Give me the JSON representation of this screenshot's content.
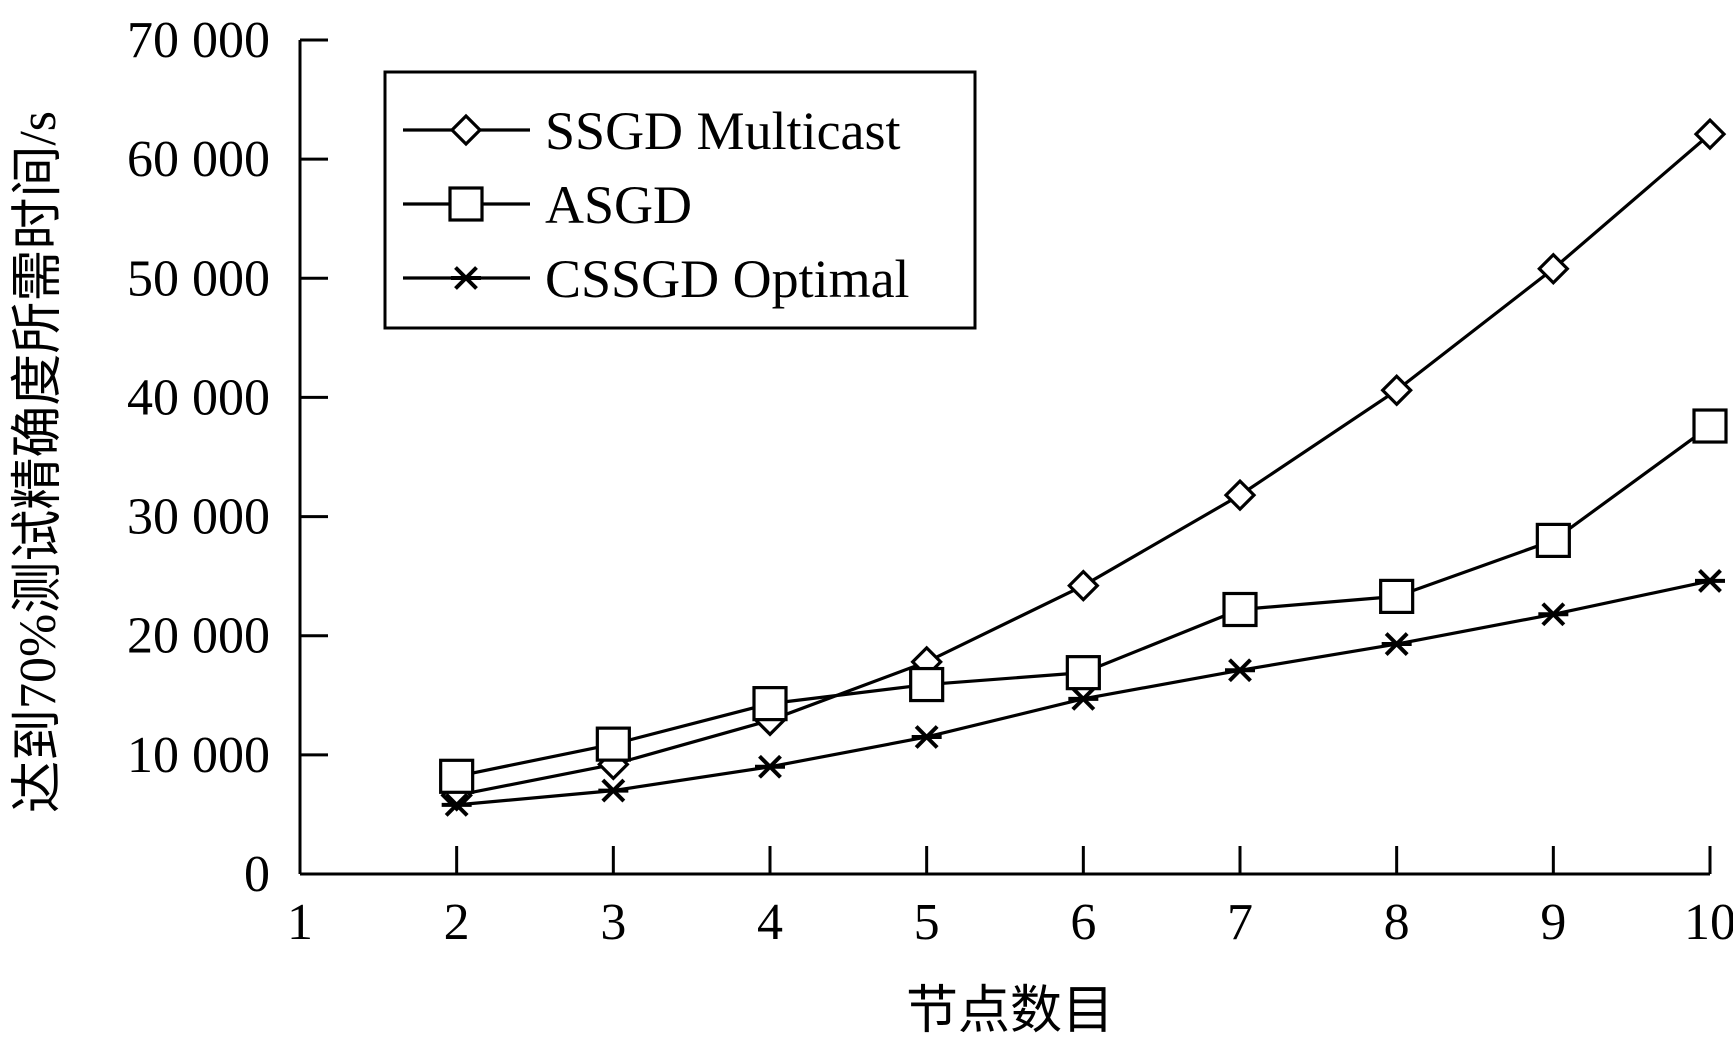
{
  "chart_data": {
    "type": "line",
    "title": "",
    "xlabel": "节点数目",
    "ylabel": "达到70%测试精确度所需时间/s",
    "xlim": [
      1,
      10
    ],
    "ylim": [
      0,
      70000
    ],
    "x_ticks": [
      "1",
      "2",
      "3",
      "4",
      "5",
      "6",
      "7",
      "8",
      "9",
      "10"
    ],
    "y_ticks": [
      "0",
      "10 000",
      "20 000",
      "30 000",
      "40 000",
      "50 000",
      "60 000",
      "70 000"
    ],
    "x": [
      2,
      3,
      4,
      5,
      6,
      7,
      8,
      9,
      10
    ],
    "legend_position": "top-left",
    "grid": false,
    "series": [
      {
        "name": "SSGD Multicast",
        "marker": "diamond",
        "values": [
          6600,
          9200,
          12900,
          17800,
          24200,
          31800,
          40600,
          50800,
          62100
        ]
      },
      {
        "name": "ASGD",
        "marker": "square",
        "values": [
          8200,
          10900,
          14300,
          15900,
          16900,
          22200,
          23300,
          28000,
          37600
        ]
      },
      {
        "name": "CSSGD Optimal",
        "marker": "star",
        "values": [
          5800,
          7000,
          9000,
          11500,
          14700,
          17100,
          19300,
          21800,
          24600
        ]
      }
    ]
  }
}
